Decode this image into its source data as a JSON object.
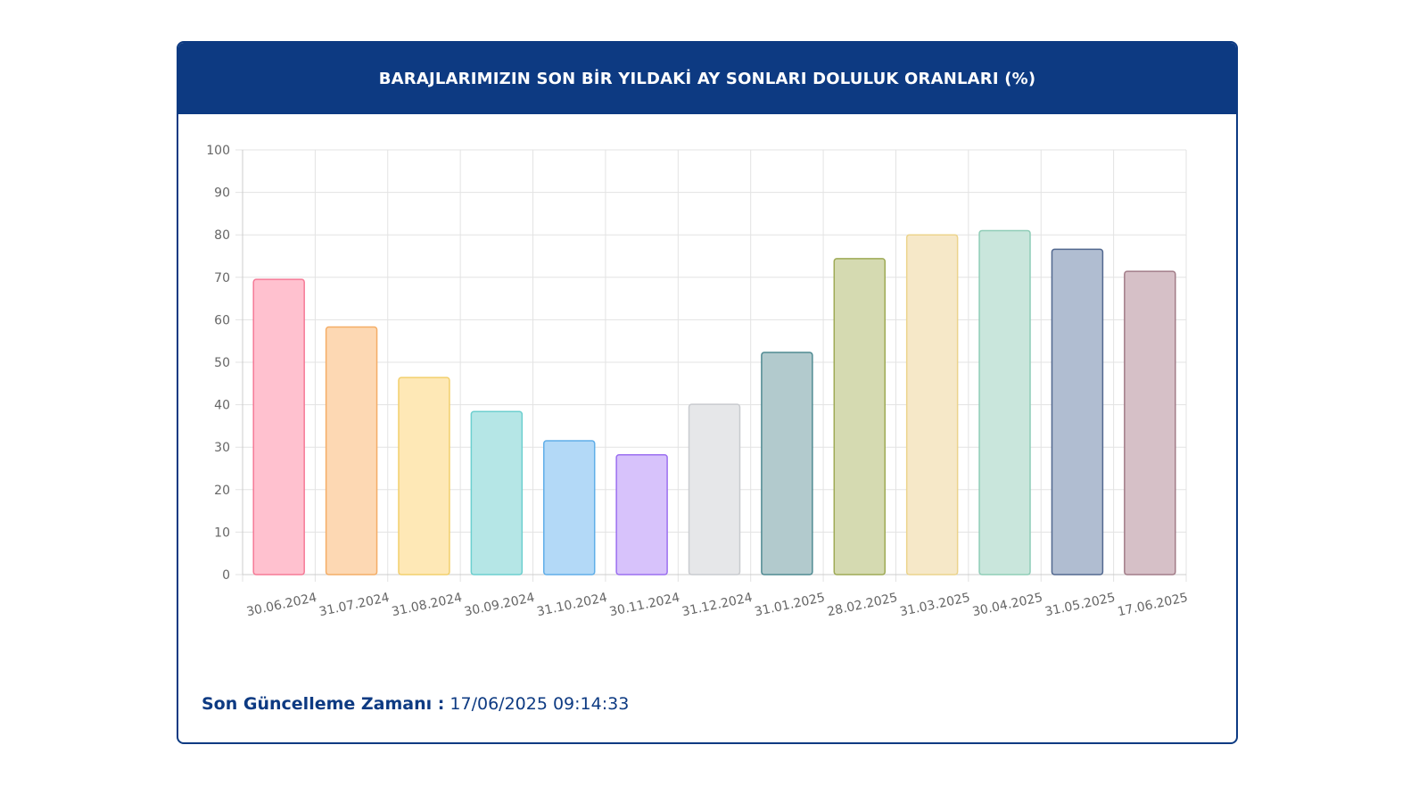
{
  "header": {
    "title": "BARAJLARIMIZIN SON BİR YILDAKİ AY SONLARI DOLULUK ORANLARI (%)"
  },
  "footer": {
    "label": "Son Güncelleme Zamanı :",
    "value": "17/06/2025 09:14:33"
  },
  "colors": {
    "header_bg": "#0d3a82",
    "grid": "#e3e3e3",
    "axis_text": "#666666"
  },
  "chart_data": {
    "type": "bar",
    "title": "BARAJLARIMIZIN SON BİR YILDAKİ AY SONLARI DOLULUK ORANLARI (%)",
    "xlabel": "",
    "ylabel": "",
    "ylim": [
      0,
      100
    ],
    "yticks": [
      0,
      10,
      20,
      30,
      40,
      50,
      60,
      70,
      80,
      90,
      100
    ],
    "grid": true,
    "legend": "none",
    "categories": [
      "30.06.2024",
      "31.07.2024",
      "31.08.2024",
      "30.09.2024",
      "31.10.2024",
      "30.11.2024",
      "31.12.2024",
      "31.01.2025",
      "28.02.2025",
      "31.03.2025",
      "30.04.2025",
      "31.05.2025",
      "17.06.2025"
    ],
    "values": [
      69.5,
      58.3,
      46.4,
      38.4,
      31.5,
      28.2,
      40.1,
      52.3,
      74.4,
      80.0,
      81.0,
      76.6,
      71.4
    ],
    "bar_fills": [
      "#ffc1cf",
      "#fdd8b3",
      "#fee8b6",
      "#b5e6e6",
      "#b3d9f7",
      "#d7c2fb",
      "#e6e7e9",
      "#b2cacd",
      "#d5dab1",
      "#f6e8c8",
      "#c9e6dc",
      "#b0bdd1",
      "#d6c0c7"
    ],
    "bar_strokes": [
      "#f57a96",
      "#f4ad66",
      "#f2cf6c",
      "#6ccfcf",
      "#60aee8",
      "#9b6ff0",
      "#c9cbcf",
      "#4f8a92",
      "#9eaa55",
      "#ecd48c",
      "#8fcdb7",
      "#52688f",
      "#a27c88"
    ]
  }
}
